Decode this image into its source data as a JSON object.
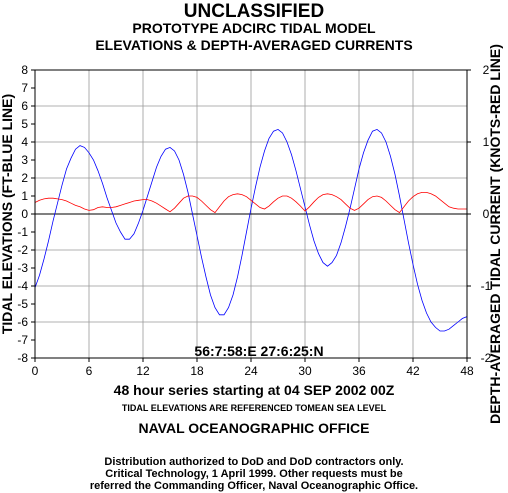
{
  "header": {
    "classification": "UNCLASSIFIED",
    "title_line1": "PROTOTYPE ADCIRC TIDAL MODEL",
    "title_line2": "ELEVATIONS & DEPTH-AVERAGED CURRENTS"
  },
  "chart_data": {
    "type": "line",
    "xlabel": "48 hour series starting at 04 SEP 2002 00Z",
    "ylabel_left": "TIDAL ELEVATIONS (FT-BLUE LINE)",
    "ylabel_right": "DEPTH-AVERAGED TIDAL CURRENT (KNOTS-RED LINE)",
    "xlim": [
      0,
      48
    ],
    "ylim_left": [
      -8,
      8
    ],
    "ylim_right": [
      -2,
      2
    ],
    "x_ticks": [
      0,
      6,
      12,
      18,
      24,
      30,
      36,
      42,
      48
    ],
    "y_ticks_left": [
      -8,
      -7,
      -6,
      -5,
      -4,
      -3,
      -2,
      -1,
      0,
      1,
      2,
      3,
      4,
      5,
      6,
      7,
      8
    ],
    "y_ticks_right": [
      -2,
      -1,
      0,
      1,
      2
    ],
    "location_label": "56:7:58:E 27:6:25:N",
    "grid": true,
    "series": [
      {
        "axis": "left",
        "color": "#0000ff",
        "x": [
          0,
          0.5,
          1,
          1.5,
          2,
          2.5,
          3,
          3.5,
          4,
          4.5,
          5,
          5.5,
          6,
          6.5,
          7,
          7.5,
          8,
          8.5,
          9,
          9.5,
          10,
          10.5,
          11,
          11.5,
          12,
          12.5,
          13,
          13.5,
          14,
          14.5,
          15,
          15.5,
          16,
          16.5,
          17,
          17.5,
          18,
          18.5,
          19,
          19.5,
          20,
          20.5,
          21,
          21.5,
          22,
          22.5,
          23,
          23.5,
          24,
          24.5,
          25,
          25.5,
          26,
          26.5,
          27,
          27.5,
          28,
          28.5,
          29,
          29.5,
          30,
          30.5,
          31,
          31.5,
          32,
          32.5,
          33,
          33.5,
          34,
          34.5,
          35,
          35.5,
          36,
          36.5,
          37,
          37.5,
          38,
          38.5,
          39,
          39.5,
          40,
          40.5,
          41,
          41.5,
          42,
          42.5,
          43,
          43.5,
          44,
          44.5,
          45,
          45.5,
          46,
          46.5,
          47,
          47.5,
          48
        ],
        "values": [
          -4.1,
          -3.4,
          -2.5,
          -1.5,
          -0.4,
          0.6,
          1.6,
          2.5,
          3.1,
          3.6,
          3.8,
          3.7,
          3.4,
          3.0,
          2.4,
          1.7,
          0.9,
          0.2,
          -0.5,
          -1.0,
          -1.4,
          -1.4,
          -1.1,
          -0.5,
          0.2,
          1.0,
          1.8,
          2.6,
          3.2,
          3.6,
          3.7,
          3.5,
          3.0,
          2.2,
          1.2,
          0.0,
          -1.2,
          -2.4,
          -3.5,
          -4.5,
          -5.2,
          -5.6,
          -5.6,
          -5.2,
          -4.5,
          -3.5,
          -2.3,
          -1.0,
          0.3,
          1.5,
          2.6,
          3.5,
          4.2,
          4.6,
          4.7,
          4.5,
          4.0,
          3.3,
          2.4,
          1.4,
          0.4,
          -0.6,
          -1.5,
          -2.2,
          -2.7,
          -2.9,
          -2.7,
          -2.3,
          -1.6,
          -0.7,
          0.3,
          1.4,
          2.5,
          3.4,
          4.1,
          4.6,
          4.7,
          4.5,
          4.0,
          3.2,
          2.2,
          1.0,
          -0.3,
          -1.6,
          -2.8,
          -3.9,
          -4.8,
          -5.5,
          -6.0,
          -6.3,
          -6.5,
          -6.5,
          -6.4,
          -6.2,
          -6.0,
          -5.8,
          -5.7
        ]
      },
      {
        "axis": "right",
        "color": "#ff0000",
        "x": [
          0,
          0.5,
          1,
          1.5,
          2,
          2.5,
          3,
          3.5,
          4,
          4.5,
          5,
          5.5,
          6,
          6.5,
          7,
          7.5,
          8,
          8.5,
          9,
          9.5,
          10,
          10.5,
          11,
          11.5,
          12,
          12.5,
          13,
          13.5,
          14,
          14.5,
          15,
          15.5,
          16,
          16.5,
          17,
          17.5,
          18,
          18.5,
          19,
          19.5,
          20,
          20.5,
          21,
          21.5,
          22,
          22.5,
          23,
          23.5,
          24,
          24.5,
          25,
          25.5,
          26,
          26.5,
          27,
          27.5,
          28,
          28.5,
          29,
          29.5,
          30,
          30.5,
          31,
          31.5,
          32,
          32.5,
          33,
          33.5,
          34,
          34.5,
          35,
          35.5,
          36,
          36.5,
          37,
          37.5,
          38,
          38.5,
          39,
          39.5,
          40,
          40.5,
          41,
          41.5,
          42,
          42.5,
          43,
          43.5,
          44,
          44.5,
          45,
          45.5,
          46,
          46.5,
          47,
          47.5,
          48
        ],
        "values": [
          0.16,
          0.19,
          0.21,
          0.22,
          0.22,
          0.21,
          0.2,
          0.18,
          0.15,
          0.12,
          0.1,
          0.07,
          0.05,
          0.06,
          0.09,
          0.1,
          0.09,
          0.09,
          0.1,
          0.12,
          0.14,
          0.16,
          0.18,
          0.19,
          0.2,
          0.2,
          0.18,
          0.15,
          0.11,
          0.07,
          0.03,
          0.08,
          0.15,
          0.22,
          0.25,
          0.25,
          0.23,
          0.18,
          0.12,
          0.06,
          0.02,
          0.1,
          0.18,
          0.24,
          0.27,
          0.28,
          0.27,
          0.24,
          0.19,
          0.14,
          0.09,
          0.07,
          0.11,
          0.17,
          0.22,
          0.25,
          0.25,
          0.22,
          0.17,
          0.11,
          0.04,
          0.1,
          0.17,
          0.23,
          0.27,
          0.28,
          0.27,
          0.24,
          0.2,
          0.14,
          0.08,
          0.05,
          0.08,
          0.14,
          0.2,
          0.24,
          0.25,
          0.23,
          0.18,
          0.12,
          0.06,
          0.02,
          0.1,
          0.18,
          0.24,
          0.28,
          0.3,
          0.3,
          0.28,
          0.25,
          0.2,
          0.15,
          0.1,
          0.08,
          0.07,
          0.07,
          0.07
        ]
      }
    ]
  },
  "footer": {
    "ref_note": "TIDAL ELEVATIONS ARE REFERENCED TOMEAN SEA LEVEL",
    "office": "NAVAL OCEANOGRAPHIC OFFICE",
    "dist1": "Distribution authorized to DoD and DoD contractors only.",
    "dist2": "Critical Technology, 1 April 1999. Other requests must be",
    "dist3": "referred the Commanding Officer, Naval Oceanographic Office."
  }
}
